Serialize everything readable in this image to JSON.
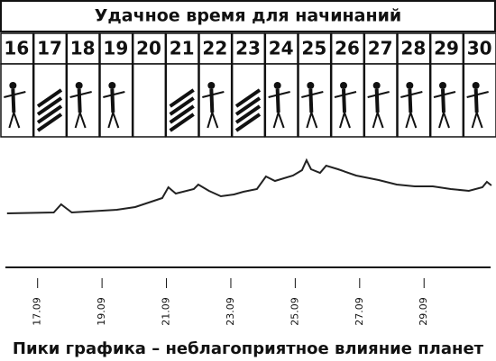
{
  "header": {
    "title": "Удачное время для начинаний",
    "days": [
      "16",
      "17",
      "18",
      "19",
      "20",
      "21",
      "22",
      "23",
      "24",
      "25",
      "26",
      "27",
      "28",
      "29",
      "30"
    ]
  },
  "chart_data": {
    "type": "line",
    "caption": "Пики графика – неблагоприятное влияние планет",
    "x": [
      16.05,
      17.5,
      17.73,
      17.84,
      18.06,
      19.46,
      20.03,
      20.87,
      21.06,
      21.29,
      21.85,
      21.99,
      22.32,
      22.69,
      23.1,
      23.39,
      23.81,
      24.09,
      24.37,
      24.93,
      25.21,
      25.35,
      25.49,
      25.77,
      25.96,
      26.33,
      26.89,
      27.59,
      28.15,
      28.71,
      29.27,
      29.83,
      30.39,
      30.81,
      30.95,
      31.09
    ],
    "series": [
      {
        "color": "#222222",
        "values": [
          60,
          61,
          70,
          67,
          61,
          64,
          67,
          77,
          89,
          82,
          87,
          92,
          85,
          79,
          81,
          84,
          87,
          101,
          96,
          102,
          108,
          119,
          109,
          105,
          113,
          109,
          102,
          97,
          92,
          90,
          90,
          87,
          85,
          89,
          95,
          91
        ]
      }
    ],
    "xlim": [
      16,
      31.15
    ],
    "ylim": [
      0,
      147
    ],
    "xticks": [
      {
        "value": 17,
        "label": "17.09"
      },
      {
        "value": 19,
        "label": "19.09"
      },
      {
        "value": 21,
        "label": "21.09"
      },
      {
        "value": 23,
        "label": "23.09"
      },
      {
        "value": 25,
        "label": "25.09"
      },
      {
        "value": 27,
        "label": "27.09"
      },
      {
        "value": 29,
        "label": "29.09"
      }
    ]
  }
}
